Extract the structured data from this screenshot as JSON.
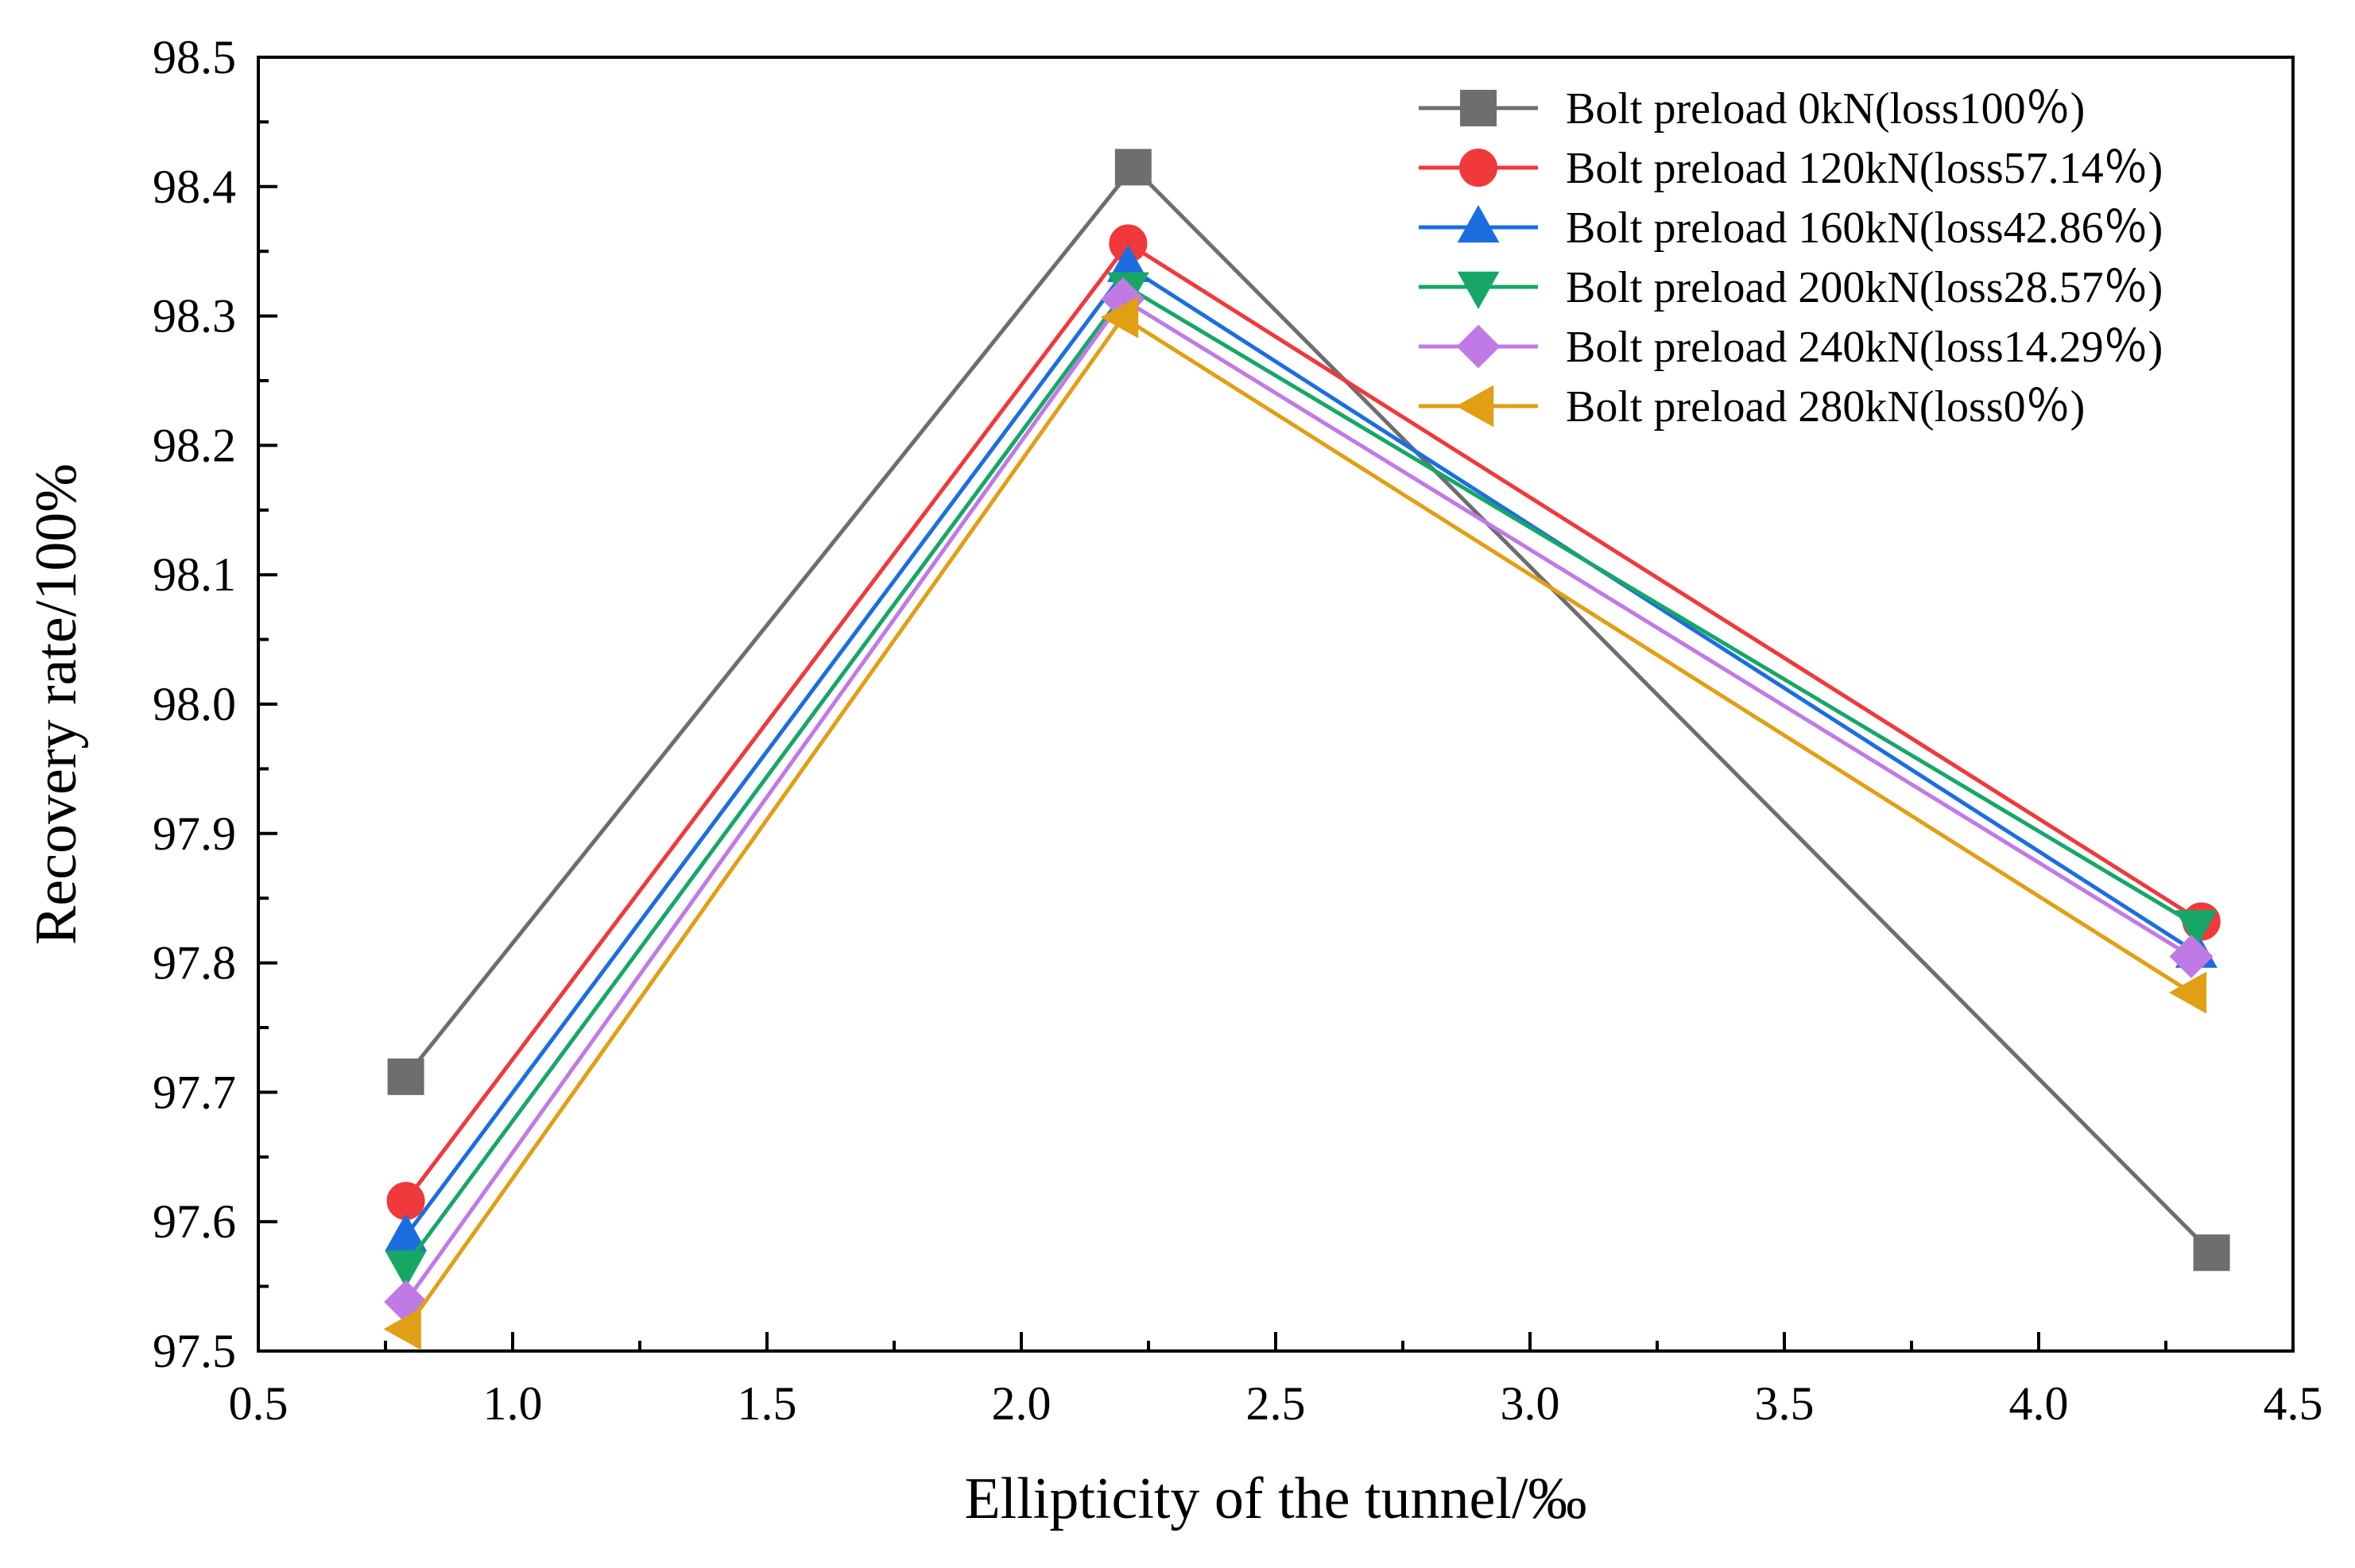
{
  "chart_data": {
    "type": "line",
    "title": "",
    "xlabel": "Ellipticity of the tunnel/‰",
    "ylabel": "Recovery rate/100%",
    "xlim": [
      0.5,
      4.5
    ],
    "ylim": [
      97.5,
      98.5
    ],
    "xticks": [
      "0.5",
      "1.0",
      "1.5",
      "2.0",
      "2.5",
      "3.0",
      "3.5",
      "4.0",
      "4.5"
    ],
    "yticks": [
      "97.5",
      "97.6",
      "97.7",
      "97.8",
      "97.9",
      "98.0",
      "98.1",
      "98.2",
      "98.3",
      "98.4",
      "98.5"
    ],
    "grid": false,
    "legend_position": "top-right",
    "series": [
      {
        "name": "Bolt preload 0kN(loss100％)",
        "color": "#6e6e6e",
        "marker": "square",
        "x": [
          0.79,
          2.22,
          4.34
        ],
        "y": [
          97.712,
          98.415,
          97.576
        ]
      },
      {
        "name": "Bolt preload 120kN(loss57.14％)",
        "color": "#f0393b",
        "marker": "circle",
        "x": [
          0.79,
          2.21,
          4.32
        ],
        "y": [
          97.616,
          98.356,
          97.832
        ]
      },
      {
        "name": "Bolt preload 160kN(loss42.86％)",
        "color": "#1c6ee0",
        "marker": "triangle-up",
        "x": [
          0.79,
          2.21,
          4.31
        ],
        "y": [
          97.589,
          98.338,
          97.808
        ]
      },
      {
        "name": "Bolt preload 200kN(loss28.57％)",
        "color": "#16a766",
        "marker": "triangle-down",
        "x": [
          0.79,
          2.21,
          4.31
        ],
        "y": [
          97.566,
          98.322,
          97.829
        ]
      },
      {
        "name": "Bolt preload 240kN(loss14.29％)",
        "color": "#c07ae6",
        "marker": "diamond",
        "x": [
          0.79,
          2.2,
          4.3
        ],
        "y": [
          97.538,
          98.313,
          97.805
        ]
      },
      {
        "name": "Bolt preload 280kN(loss0％)",
        "color": "#e09f14",
        "marker": "triangle-left",
        "x": [
          0.79,
          2.2,
          4.3
        ],
        "y": [
          97.517,
          98.299,
          97.777
        ]
      }
    ]
  }
}
